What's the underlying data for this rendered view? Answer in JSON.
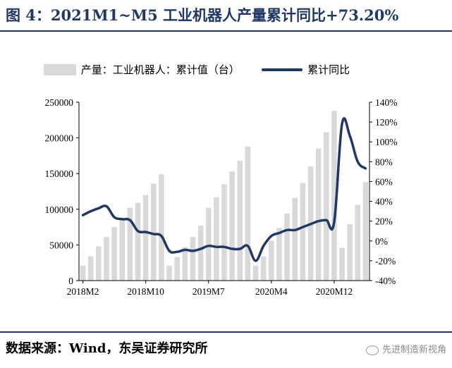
{
  "title": "图 4：2021M1~M5 工业机器人产量累计同比+73.20%",
  "footer": {
    "source": "数据来源：Wind，东吴证券研究所"
  },
  "watermark": {
    "text": "先进制造新视角",
    "icon": "wechat-icon"
  },
  "colors": {
    "title": "#1f3864",
    "bars": "#d9d9d9",
    "line": "#1f3864"
  },
  "chart_data": {
    "type": "bar",
    "legend": {
      "bar": "产量：工业机器人：累计值（台）",
      "line": "累计同比",
      "position": "top"
    },
    "x": [
      "2018M2",
      "2018M3",
      "2018M4",
      "2018M5",
      "2018M6",
      "2018M7",
      "2018M8",
      "2018M9",
      "2018M10",
      "2018M11",
      "2018M12",
      "2019M2",
      "2019M3",
      "2019M4",
      "2019M5",
      "2019M6",
      "2019M7",
      "2019M8",
      "2019M9",
      "2019M10",
      "2019M11",
      "2019M12",
      "2020M2",
      "2020M3",
      "2020M4",
      "2020M5",
      "2020M6",
      "2020M7",
      "2020M8",
      "2020M9",
      "2020M10",
      "2020M11",
      "2020M12",
      "2021M2",
      "2021M3",
      "2021M4",
      "2021M5"
    ],
    "x_tick_labels": [
      "2018M2",
      "2018M10",
      "2019M7",
      "2020M4",
      "2020M12"
    ],
    "series": [
      {
        "name": "产量：工业机器人：累计值（台）",
        "kind": "bar",
        "axis": "left",
        "values": [
          21000,
          34000,
          48000,
          61000,
          75000,
          86000,
          102000,
          109000,
          120000,
          136000,
          149000,
          21000,
          33000,
          47000,
          61000,
          77000,
          102000,
          117000,
          135000,
          153000,
          168000,
          188000,
          21000,
          34000,
          56000,
          74000,
          94000,
          116000,
          137000,
          160000,
          185000,
          208000,
          238000,
          46000,
          79000,
          106000,
          138000
        ]
      },
      {
        "name": "累计同比",
        "kind": "line",
        "axis": "right",
        "values": [
          26,
          30,
          33,
          35,
          24,
          22,
          21,
          10,
          9,
          7,
          5,
          -10,
          -11,
          -9,
          -10,
          -8,
          -5,
          -6,
          -6,
          -8,
          -8,
          -5,
          -20,
          -5,
          5,
          8,
          11,
          11,
          14,
          17,
          20,
          21,
          19,
          118,
          106,
          80,
          73.2
        ]
      }
    ],
    "y_left": {
      "ticks": [
        0,
        50000,
        100000,
        150000,
        200000,
        250000
      ],
      "ylim": [
        0,
        250000
      ]
    },
    "y_right": {
      "ticks": [
        "-40%",
        "-20%",
        "0%",
        "20%",
        "40%",
        "60%",
        "80%",
        "100%",
        "120%",
        "140%"
      ],
      "ylim": [
        -40,
        140
      ]
    },
    "grid": false
  }
}
